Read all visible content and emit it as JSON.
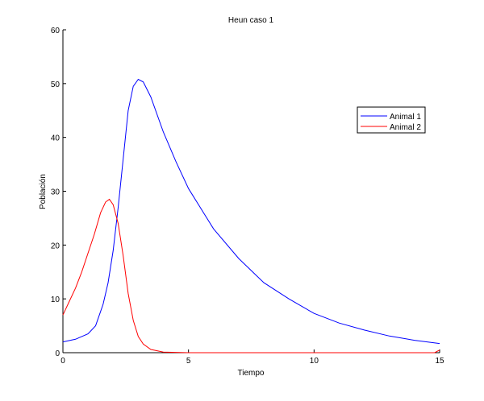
{
  "chart_data": {
    "type": "line",
    "title": "Heun caso 1",
    "xlabel": "Tiempo",
    "ylabel": "Población",
    "xlim": [
      0,
      15
    ],
    "ylim": [
      0,
      60
    ],
    "xticks": [
      0,
      5,
      10,
      15
    ],
    "yticks": [
      0,
      10,
      20,
      30,
      40,
      50,
      60
    ],
    "grid": false,
    "legend_position": "top-right",
    "series": [
      {
        "name": "Animal 1",
        "color": "#0000ff",
        "x": [
          0,
          0.5,
          1,
          1.3,
          1.6,
          1.8,
          2.0,
          2.2,
          2.4,
          2.6,
          2.8,
          3.0,
          3.2,
          3.5,
          4,
          4.5,
          5,
          6,
          7,
          8,
          9,
          10,
          11,
          12,
          13,
          14,
          15
        ],
        "y": [
          2,
          2.5,
          3.5,
          5,
          9,
          13,
          19,
          27,
          36,
          45,
          49.5,
          50.8,
          50.3,
          47.5,
          41,
          35.5,
          30.5,
          23,
          17.5,
          13,
          10,
          7.3,
          5.5,
          4.2,
          3.1,
          2.3,
          1.7
        ]
      },
      {
        "name": "Animal 2",
        "color": "#ff0000",
        "x": [
          0,
          0.25,
          0.5,
          0.75,
          1,
          1.25,
          1.5,
          1.7,
          1.85,
          2.0,
          2.2,
          2.4,
          2.6,
          2.8,
          3.0,
          3.2,
          3.5,
          4,
          5,
          10,
          14.8,
          15
        ],
        "y": [
          7,
          9.5,
          12,
          15,
          18.5,
          22,
          26,
          28,
          28.5,
          27.5,
          24,
          18,
          11,
          6,
          3,
          1.6,
          0.6,
          0.1,
          0,
          0,
          0,
          0.5
        ]
      }
    ]
  }
}
